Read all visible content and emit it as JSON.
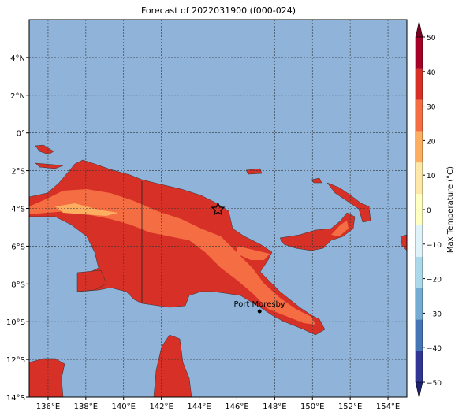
{
  "map": {
    "title": "Forecast of 2022031900 (f000-024)",
    "xlim": [
      135,
      155
    ],
    "ylim": [
      -14,
      6
    ],
    "xticks": [
      {
        "value": 136,
        "label": "136°E"
      },
      {
        "value": 138,
        "label": "138°E"
      },
      {
        "value": 140,
        "label": "140°E"
      },
      {
        "value": 142,
        "label": "142°E"
      },
      {
        "value": 144,
        "label": "144°E"
      },
      {
        "value": 146,
        "label": "146°E"
      },
      {
        "value": 148,
        "label": "148°E"
      },
      {
        "value": 150,
        "label": "150°E"
      },
      {
        "value": 152,
        "label": "152°E"
      },
      {
        "value": 154,
        "label": "154°E"
      }
    ],
    "yticks": [
      {
        "value": 4,
        "label": "4°N"
      },
      {
        "value": 2,
        "label": "2°N"
      },
      {
        "value": 0,
        "label": "0°"
      },
      {
        "value": -2,
        "label": "2°S"
      },
      {
        "value": -4,
        "label": "4°S"
      },
      {
        "value": -6,
        "label": "6°S"
      },
      {
        "value": -8,
        "label": "8°S"
      },
      {
        "value": -10,
        "label": "10°S"
      },
      {
        "value": -12,
        "label": "12°S"
      },
      {
        "value": -14,
        "label": "14°S"
      }
    ],
    "grid": true,
    "annotation": {
      "text": "Port Moresby",
      "lon": 147.2,
      "lat": -9.45
    },
    "star": {
      "lon": 145.0,
      "lat": -4.05
    },
    "colorbar": {
      "label": "Max Temperature (°C)",
      "lim": [
        -50,
        50
      ],
      "ticks": [
        50,
        40,
        30,
        20,
        10,
        0,
        {
          "value": -10,
          "label": "−10"
        },
        {
          "value": -20,
          "label": "−20"
        },
        {
          "value": -30,
          "label": "−30"
        },
        {
          "value": -40,
          "label": "−40"
        },
        {
          "value": -50,
          "label": "−50"
        }
      ],
      "colors": [
        "#1f2370",
        "#313695",
        "#4575b4",
        "#74add1",
        "#abd9e9",
        "#e0f3f8",
        "#ffffbf",
        "#fee8a8",
        "#fdae61",
        "#f46d43",
        "#d73027",
        "#a50026",
        "#7a0020"
      ]
    }
  }
}
